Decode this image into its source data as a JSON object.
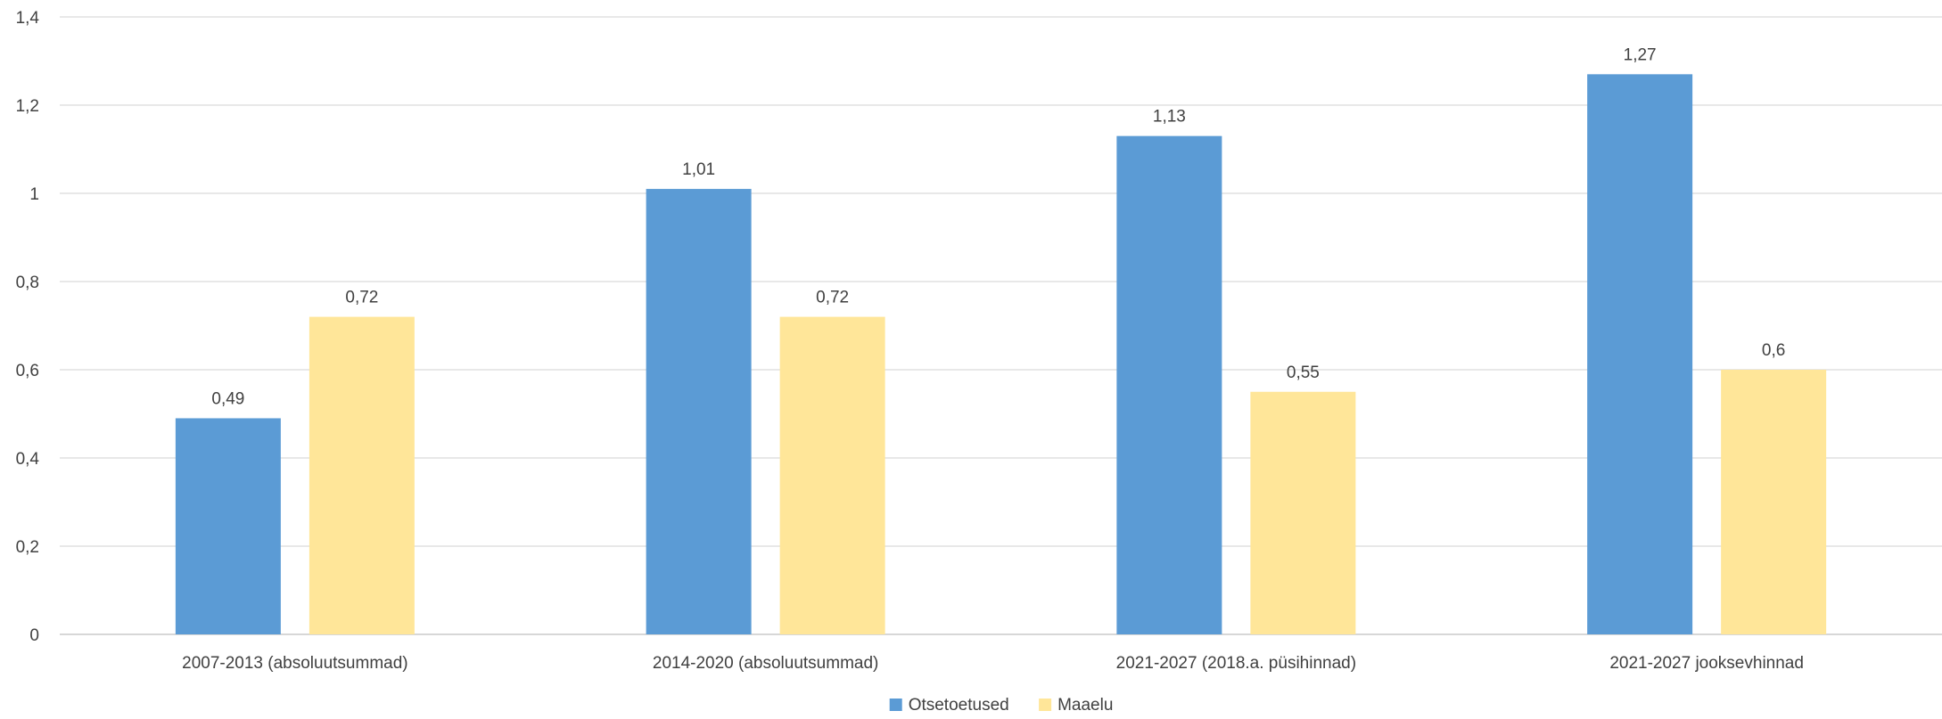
{
  "chart_data": {
    "type": "bar",
    "categories": [
      "2007-2013 (absoluutsummad)",
      "2014-2020 (absoluutsummad)",
      "2021-2027 (2018.a. püsihinnad)",
      "2021-2027 jooksevhinnad"
    ],
    "series": [
      {
        "name": "Otsetoetused",
        "color": "#5b9bd5",
        "values": [
          0.49,
          1.01,
          1.13,
          1.27
        ],
        "labels": [
          "0,49",
          "1,01",
          "1,13",
          "1,27"
        ]
      },
      {
        "name": "Maaelu",
        "color": "#ffe699",
        "values": [
          0.72,
          0.72,
          0.55,
          0.6
        ],
        "labels": [
          "0,72",
          "0,72",
          "0,55",
          "0,6"
        ]
      }
    ],
    "yticks": [
      0,
      0.2,
      0.4,
      0.6,
      0.8,
      1,
      1.2,
      1.4
    ],
    "ytick_labels": [
      "0",
      "0,2",
      "0,4",
      "0,6",
      "0,8",
      "1",
      "1,2",
      "1,4"
    ],
    "ylim": [
      0,
      1.4
    ],
    "grid": true,
    "legend": "bottom-center",
    "title": "",
    "xlabel": "",
    "ylabel": ""
  }
}
